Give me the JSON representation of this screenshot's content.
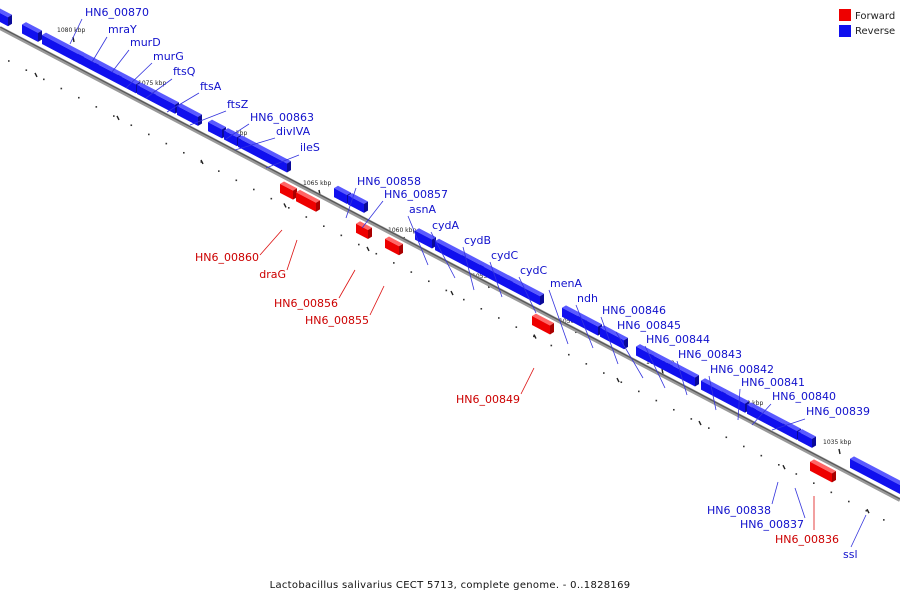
{
  "caption": "Lactobacillus salivarius CECT 5713, complete genome. - 0..1828169",
  "legend": {
    "forward": {
      "label": "Forward",
      "color": "#ee0000"
    },
    "reverse": {
      "label": "Reverse",
      "color": "#1010ee"
    }
  },
  "colors": {
    "forward": "#ee0000",
    "reverse": "#1010ee",
    "backbone": "#555555"
  },
  "kbp_labels": [
    "1080 kbp",
    "1075 kbp",
    "1070 kbp",
    "1065 kbp",
    "1060 kbp",
    "1055 kbp",
    "1050 kbp",
    "1045 kbp",
    "1040 kbp",
    "1035 kbp"
  ],
  "genes": [
    {
      "name": "HN6_00870",
      "strand": "reverse"
    },
    {
      "name": "mraY",
      "strand": "reverse"
    },
    {
      "name": "murD",
      "strand": "reverse"
    },
    {
      "name": "murG",
      "strand": "reverse"
    },
    {
      "name": "ftsQ",
      "strand": "reverse"
    },
    {
      "name": "ftsA",
      "strand": "reverse"
    },
    {
      "name": "ftsZ",
      "strand": "reverse"
    },
    {
      "name": "HN6_00863",
      "strand": "reverse"
    },
    {
      "name": "divIVA",
      "strand": "reverse"
    },
    {
      "name": "ileS",
      "strand": "reverse"
    },
    {
      "name": "HN6_00860",
      "strand": "forward"
    },
    {
      "name": "draG",
      "strand": "forward"
    },
    {
      "name": "HN6_00858",
      "strand": "reverse"
    },
    {
      "name": "HN6_00857",
      "strand": "reverse"
    },
    {
      "name": "HN6_00856",
      "strand": "forward"
    },
    {
      "name": "HN6_00855",
      "strand": "forward"
    },
    {
      "name": "asnA",
      "strand": "reverse"
    },
    {
      "name": "cydA",
      "strand": "reverse"
    },
    {
      "name": "cydB",
      "strand": "reverse"
    },
    {
      "name": "cydC",
      "strand": "reverse"
    },
    {
      "name": "cydC",
      "strand": "reverse"
    },
    {
      "name": "menA",
      "strand": "reverse"
    },
    {
      "name": "HN6_00849",
      "strand": "forward"
    },
    {
      "name": "ndh",
      "strand": "reverse"
    },
    {
      "name": "HN6_00846",
      "strand": "reverse"
    },
    {
      "name": "HN6_00845",
      "strand": "reverse"
    },
    {
      "name": "HN6_00844",
      "strand": "reverse"
    },
    {
      "name": "HN6_00843",
      "strand": "reverse"
    },
    {
      "name": "HN6_00842",
      "strand": "reverse"
    },
    {
      "name": "HN6_00841",
      "strand": "reverse"
    },
    {
      "name": "HN6_00840",
      "strand": "reverse"
    },
    {
      "name": "HN6_00839",
      "strand": "reverse"
    },
    {
      "name": "HN6_00838",
      "strand": "reverse"
    },
    {
      "name": "HN6_00837",
      "strand": "reverse"
    },
    {
      "name": "HN6_00836",
      "strand": "forward"
    },
    {
      "name": "ssl",
      "strand": "reverse"
    }
  ]
}
